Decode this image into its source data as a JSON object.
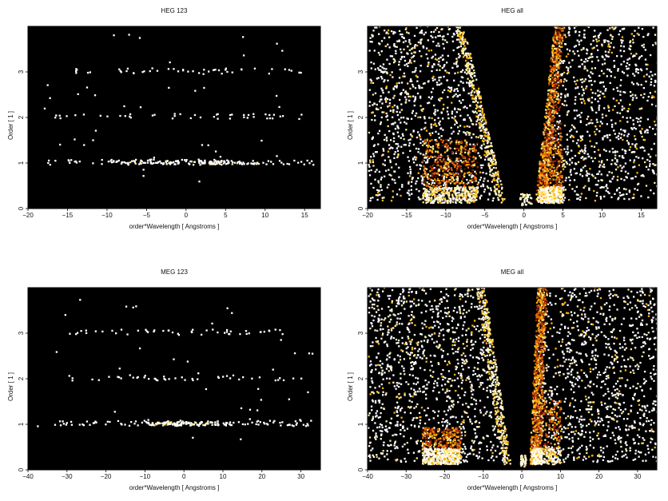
{
  "chart_data": [
    {
      "type": "heatmap",
      "title": "HEG 123",
      "xlabel": "order*Wavelength [ Angstroms ]",
      "ylabel": "Order [ 1 ]",
      "xlim": [
        -20,
        17
      ],
      "ylim": [
        0,
        4
      ],
      "xticks": [
        -20,
        -15,
        -10,
        -5,
        0,
        5,
        10,
        15
      ],
      "yticks": [
        0,
        1,
        2,
        3
      ],
      "background": "#000000",
      "bands": [
        {
          "order": 1,
          "x_min": -18,
          "x_max": 16,
          "density": "medium",
          "dense_x_range": [
            -10,
            9
          ]
        },
        {
          "order": 2,
          "x_min": -17,
          "x_max": 15,
          "density": "low"
        },
        {
          "order": 3,
          "x_min": -17,
          "x_max": 16,
          "density": "low"
        }
      ],
      "wedge": false
    },
    {
      "type": "heatmap",
      "title": "HEG all",
      "xlabel": "order*Wavelength [ Angstroms ]",
      "ylabel": "Order [ 1 ]",
      "xlim": [
        -20,
        17
      ],
      "ylim": [
        0,
        4
      ],
      "xticks": [
        -20,
        -15,
        -10,
        -5,
        0,
        5,
        10,
        15
      ],
      "yticks": [
        0,
        1,
        2,
        3
      ],
      "background": "#000000",
      "wedge": true,
      "wedge_edges": {
        "left_bottom": -2.5,
        "left_top": -8,
        "right_bottom": 1.5,
        "right_top": 4
      },
      "bright_regions": [
        {
          "x_range": [
            -13,
            -6
          ],
          "y_range": [
            0.1,
            1.5
          ],
          "intensity": "high"
        },
        {
          "x_range": [
            0.8,
            4.7
          ],
          "y_range": [
            0.1,
            4
          ],
          "intensity": "high"
        },
        {
          "x_range": [
            2,
            5
          ],
          "y_range": [
            0.1,
            1.5
          ],
          "intensity": "medium"
        }
      ],
      "colors": [
        "#ffffff",
        "#ffe88a",
        "#ffb300",
        "#e86a00",
        "#a32a00",
        "#5a0f00"
      ]
    },
    {
      "type": "heatmap",
      "title": "MEG 123",
      "xlabel": "order*Wavelength [ Angstroms ]",
      "ylabel": "Order [ 1 ]",
      "xlim": [
        -40,
        35
      ],
      "ylim": [
        0,
        4
      ],
      "xticks": [
        -40,
        -30,
        -20,
        -10,
        0,
        10,
        20,
        30
      ],
      "yticks": [
        0,
        1,
        2,
        3
      ],
      "background": "#000000",
      "bands": [
        {
          "order": 1,
          "x_min": -34,
          "x_max": 33,
          "density": "medium",
          "dense_x_range": [
            -10,
            12
          ]
        },
        {
          "order": 2,
          "x_min": -30,
          "x_max": 30,
          "density": "low"
        },
        {
          "order": 3,
          "x_min": -30,
          "x_max": 30,
          "density": "low"
        }
      ],
      "wedge": false
    },
    {
      "type": "heatmap",
      "title": "MEG all",
      "xlabel": "order*Wavelength [ Angstroms ]",
      "ylabel": "Order [ 1 ]",
      "xlim": [
        -40,
        35
      ],
      "ylim": [
        0,
        4
      ],
      "xticks": [
        -40,
        -30,
        -20,
        -10,
        0,
        10,
        20,
        30
      ],
      "yticks": [
        0,
        1,
        2,
        3
      ],
      "background": "#000000",
      "wedge": true,
      "wedge_edges": {
        "left_bottom": -3,
        "left_top": -10,
        "right_bottom": 2,
        "right_top": 4
      },
      "bright_regions": [
        {
          "x_range": [
            -26,
            -16
          ],
          "y_range": [
            0.1,
            0.9
          ],
          "intensity": "high"
        },
        {
          "x_range": [
            1.5,
            5
          ],
          "y_range": [
            0.1,
            4
          ],
          "intensity": "high"
        },
        {
          "x_range": [
            3,
            10
          ],
          "y_range": [
            0.1,
            1.5
          ],
          "intensity": "medium"
        }
      ],
      "colors": [
        "#ffffff",
        "#ffe88a",
        "#ffb300",
        "#e86a00",
        "#a32a00",
        "#5a0f00"
      ]
    }
  ]
}
